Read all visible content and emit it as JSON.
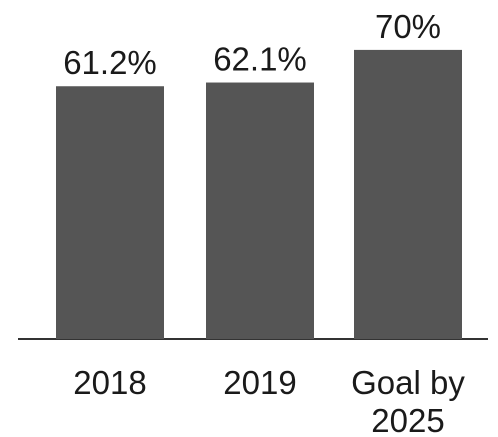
{
  "chart_data": {
    "type": "bar",
    "categories": [
      [
        "2018"
      ],
      [
        "2019"
      ],
      [
        "Goal by",
        "2025"
      ]
    ],
    "values": [
      61.2,
      62.1,
      70
    ],
    "value_labels": [
      "61.2%",
      "62.1%",
      "70%"
    ],
    "colors": {
      "bar": "#555555",
      "text": "#1a1a1a",
      "axis": "#333333"
    },
    "ylim": [
      0,
      70
    ]
  }
}
